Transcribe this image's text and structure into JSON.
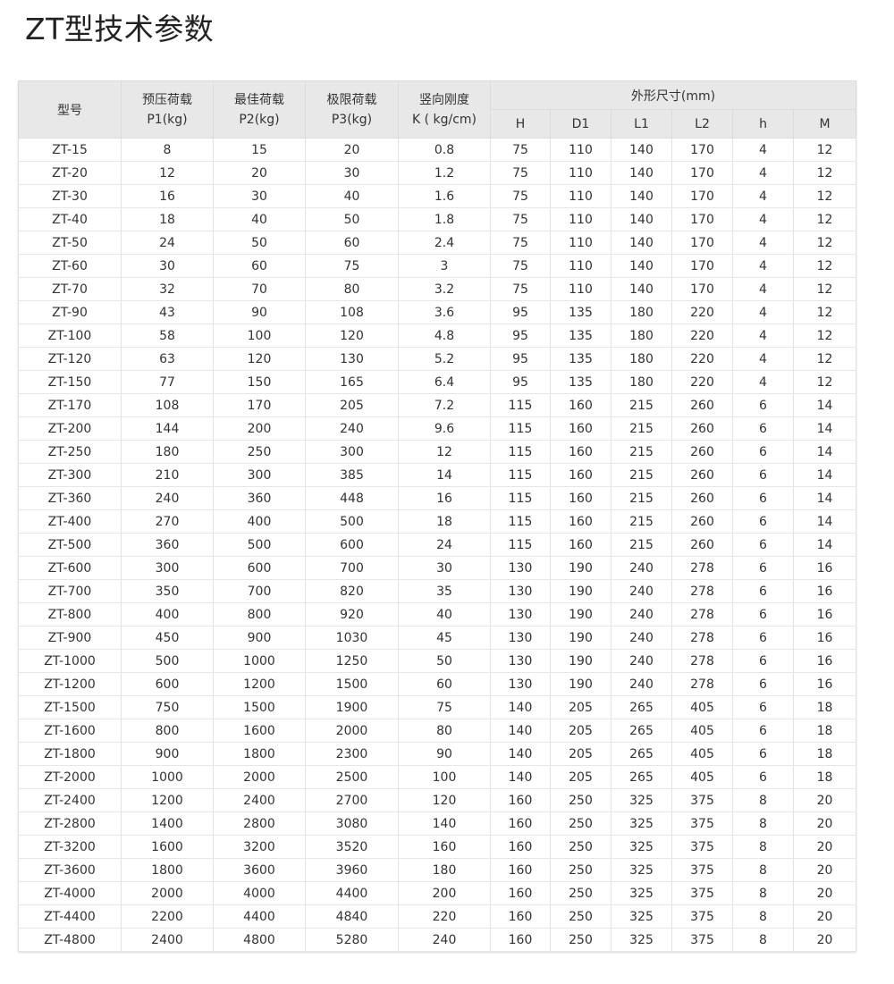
{
  "title": "ZT型技术参数",
  "table": {
    "headers": {
      "model": "型号",
      "p1": [
        "预压荷载",
        "P1(kg)"
      ],
      "p2": [
        "最佳荷载",
        "P2(kg)"
      ],
      "p3": [
        "极限荷载",
        "P3(kg)"
      ],
      "k": [
        "竖向刚度",
        "K ( kg/cm)"
      ],
      "dims": "外形尺寸(mm)",
      "dim_cols": [
        "H",
        "D1",
        "L1",
        "L2",
        "h",
        "M"
      ]
    },
    "rows": [
      [
        "ZT-15",
        "8",
        "15",
        "20",
        "0.8",
        "75",
        "110",
        "140",
        "170",
        "4",
        "12"
      ],
      [
        "ZT-20",
        "12",
        "20",
        "30",
        "1.2",
        "75",
        "110",
        "140",
        "170",
        "4",
        "12"
      ],
      [
        "ZT-30",
        "16",
        "30",
        "40",
        "1.6",
        "75",
        "110",
        "140",
        "170",
        "4",
        "12"
      ],
      [
        "ZT-40",
        "18",
        "40",
        "50",
        "1.8",
        "75",
        "110",
        "140",
        "170",
        "4",
        "12"
      ],
      [
        "ZT-50",
        "24",
        "50",
        "60",
        "2.4",
        "75",
        "110",
        "140",
        "170",
        "4",
        "12"
      ],
      [
        "ZT-60",
        "30",
        "60",
        "75",
        "3",
        "75",
        "110",
        "140",
        "170",
        "4",
        "12"
      ],
      [
        "ZT-70",
        "32",
        "70",
        "80",
        "3.2",
        "75",
        "110",
        "140",
        "170",
        "4",
        "12"
      ],
      [
        "ZT-90",
        "43",
        "90",
        "108",
        "3.6",
        "95",
        "135",
        "180",
        "220",
        "4",
        "12"
      ],
      [
        "ZT-100",
        "58",
        "100",
        "120",
        "4.8",
        "95",
        "135",
        "180",
        "220",
        "4",
        "12"
      ],
      [
        "ZT-120",
        "63",
        "120",
        "130",
        "5.2",
        "95",
        "135",
        "180",
        "220",
        "4",
        "12"
      ],
      [
        "ZT-150",
        "77",
        "150",
        "165",
        "6.4",
        "95",
        "135",
        "180",
        "220",
        "4",
        "12"
      ],
      [
        "ZT-170",
        "108",
        "170",
        "205",
        "7.2",
        "115",
        "160",
        "215",
        "260",
        "6",
        "14"
      ],
      [
        "ZT-200",
        "144",
        "200",
        "240",
        "9.6",
        "115",
        "160",
        "215",
        "260",
        "6",
        "14"
      ],
      [
        "ZT-250",
        "180",
        "250",
        "300",
        "12",
        "115",
        "160",
        "215",
        "260",
        "6",
        "14"
      ],
      [
        "ZT-300",
        "210",
        "300",
        "385",
        "14",
        "115",
        "160",
        "215",
        "260",
        "6",
        "14"
      ],
      [
        "ZT-360",
        "240",
        "360",
        "448",
        "16",
        "115",
        "160",
        "215",
        "260",
        "6",
        "14"
      ],
      [
        "ZT-400",
        "270",
        "400",
        "500",
        "18",
        "115",
        "160",
        "215",
        "260",
        "6",
        "14"
      ],
      [
        "ZT-500",
        "360",
        "500",
        "600",
        "24",
        "115",
        "160",
        "215",
        "260",
        "6",
        "14"
      ],
      [
        "ZT-600",
        "300",
        "600",
        "700",
        "30",
        "130",
        "190",
        "240",
        "278",
        "6",
        "16"
      ],
      [
        "ZT-700",
        "350",
        "700",
        "820",
        "35",
        "130",
        "190",
        "240",
        "278",
        "6",
        "16"
      ],
      [
        "ZT-800",
        "400",
        "800",
        "920",
        "40",
        "130",
        "190",
        "240",
        "278",
        "6",
        "16"
      ],
      [
        "ZT-900",
        "450",
        "900",
        "1030",
        "45",
        "130",
        "190",
        "240",
        "278",
        "6",
        "16"
      ],
      [
        "ZT-1000",
        "500",
        "1000",
        "1250",
        "50",
        "130",
        "190",
        "240",
        "278",
        "6",
        "16"
      ],
      [
        "ZT-1200",
        "600",
        "1200",
        "1500",
        "60",
        "130",
        "190",
        "240",
        "278",
        "6",
        "16"
      ],
      [
        "ZT-1500",
        "750",
        "1500",
        "1900",
        "75",
        "140",
        "205",
        "265",
        "405",
        "6",
        "18"
      ],
      [
        "ZT-1600",
        "800",
        "1600",
        "2000",
        "80",
        "140",
        "205",
        "265",
        "405",
        "6",
        "18"
      ],
      [
        "ZT-1800",
        "900",
        "1800",
        "2300",
        "90",
        "140",
        "205",
        "265",
        "405",
        "6",
        "18"
      ],
      [
        "ZT-2000",
        "1000",
        "2000",
        "2500",
        "100",
        "140",
        "205",
        "265",
        "405",
        "6",
        "18"
      ],
      [
        "ZT-2400",
        "1200",
        "2400",
        "2700",
        "120",
        "160",
        "250",
        "325",
        "375",
        "8",
        "20"
      ],
      [
        "ZT-2800",
        "1400",
        "2800",
        "3080",
        "140",
        "160",
        "250",
        "325",
        "375",
        "8",
        "20"
      ],
      [
        "ZT-3200",
        "1600",
        "3200",
        "3520",
        "160",
        "160",
        "250",
        "325",
        "375",
        "8",
        "20"
      ],
      [
        "ZT-3600",
        "1800",
        "3600",
        "3960",
        "180",
        "160",
        "250",
        "325",
        "375",
        "8",
        "20"
      ],
      [
        "ZT-4000",
        "2000",
        "4000",
        "4400",
        "200",
        "160",
        "250",
        "325",
        "375",
        "8",
        "20"
      ],
      [
        "ZT-4400",
        "2200",
        "4400",
        "4840",
        "220",
        "160",
        "250",
        "325",
        "375",
        "8",
        "20"
      ],
      [
        "ZT-4800",
        "2400",
        "4800",
        "5280",
        "240",
        "160",
        "250",
        "325",
        "375",
        "8",
        "20"
      ]
    ]
  }
}
